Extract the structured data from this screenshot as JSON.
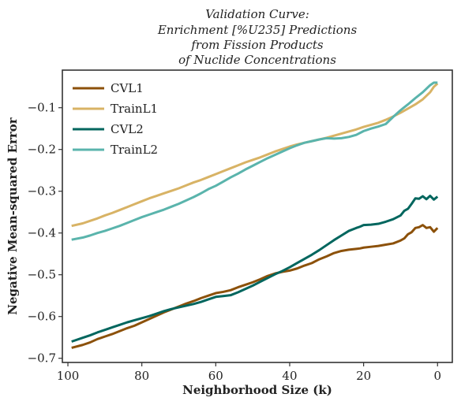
{
  "chart_data": {
    "type": "line",
    "title_lines": [
      "Validation Curve:",
      "Enrichment [%U235] Predictions",
      "from Fission Products",
      "of Nuclide Concentrations"
    ],
    "xlabel": "Neighborhood Size (k)",
    "ylabel": "Negative Mean-squared Error",
    "xlim": [
      101.5,
      -4
    ],
    "ylim": [
      -0.71,
      -0.01
    ],
    "x_ticks": [
      100,
      80,
      60,
      40,
      20,
      0
    ],
    "y_ticks": [
      -0.7,
      -0.6,
      -0.5,
      -0.4,
      -0.3,
      -0.2,
      -0.1
    ],
    "grid": false,
    "legend_position": "top-left",
    "series": [
      {
        "name": "CVL1",
        "color": "#8c510a",
        "points": [
          [
            99,
            -0.675
          ],
          [
            96,
            -0.668
          ],
          [
            94,
            -0.662
          ],
          [
            92,
            -0.654
          ],
          [
            90,
            -0.648
          ],
          [
            88,
            -0.642
          ],
          [
            86,
            -0.635
          ],
          [
            84,
            -0.628
          ],
          [
            82,
            -0.622
          ],
          [
            80,
            -0.614
          ],
          [
            78,
            -0.606
          ],
          [
            76,
            -0.598
          ],
          [
            74,
            -0.59
          ],
          [
            72,
            -0.583
          ],
          [
            70,
            -0.576
          ],
          [
            68,
            -0.569
          ],
          [
            66,
            -0.563
          ],
          [
            64,
            -0.556
          ],
          [
            62,
            -0.55
          ],
          [
            60,
            -0.544
          ],
          [
            58,
            -0.541
          ],
          [
            56,
            -0.537
          ],
          [
            54,
            -0.53
          ],
          [
            52,
            -0.524
          ],
          [
            50,
            -0.518
          ],
          [
            48,
            -0.511
          ],
          [
            46,
            -0.503
          ],
          [
            44,
            -0.497
          ],
          [
            42,
            -0.493
          ],
          [
            40,
            -0.49
          ],
          [
            38,
            -0.485
          ],
          [
            36,
            -0.478
          ],
          [
            34,
            -0.472
          ],
          [
            32,
            -0.463
          ],
          [
            30,
            -0.456
          ],
          [
            28,
            -0.448
          ],
          [
            26,
            -0.443
          ],
          [
            24,
            -0.44
          ],
          [
            22,
            -0.438
          ],
          [
            21,
            -0.437
          ],
          [
            20,
            -0.435
          ],
          [
            18,
            -0.433
          ],
          [
            16,
            -0.431
          ],
          [
            14,
            -0.428
          ],
          [
            12,
            -0.425
          ],
          [
            10,
            -0.418
          ],
          [
            9,
            -0.413
          ],
          [
            8,
            -0.403
          ],
          [
            7,
            -0.398
          ],
          [
            6,
            -0.388
          ],
          [
            5,
            -0.386
          ],
          [
            4,
            -0.381
          ],
          [
            3,
            -0.388
          ],
          [
            2,
            -0.386
          ],
          [
            1,
            -0.397
          ],
          [
            0,
            -0.388
          ]
        ]
      },
      {
        "name": "TrainL1",
        "color": "#d8b365",
        "points": [
          [
            99,
            -0.383
          ],
          [
            96,
            -0.377
          ],
          [
            94,
            -0.371
          ],
          [
            92,
            -0.365
          ],
          [
            90,
            -0.358
          ],
          [
            88,
            -0.352
          ],
          [
            86,
            -0.345
          ],
          [
            84,
            -0.338
          ],
          [
            82,
            -0.331
          ],
          [
            80,
            -0.324
          ],
          [
            78,
            -0.317
          ],
          [
            76,
            -0.311
          ],
          [
            74,
            -0.305
          ],
          [
            72,
            -0.299
          ],
          [
            70,
            -0.293
          ],
          [
            68,
            -0.286
          ],
          [
            66,
            -0.279
          ],
          [
            64,
            -0.273
          ],
          [
            62,
            -0.266
          ],
          [
            60,
            -0.259
          ],
          [
            58,
            -0.252
          ],
          [
            56,
            -0.245
          ],
          [
            54,
            -0.238
          ],
          [
            52,
            -0.231
          ],
          [
            50,
            -0.225
          ],
          [
            48,
            -0.219
          ],
          [
            46,
            -0.212
          ],
          [
            44,
            -0.205
          ],
          [
            42,
            -0.199
          ],
          [
            40,
            -0.193
          ],
          [
            38,
            -0.188
          ],
          [
            36,
            -0.184
          ],
          [
            34,
            -0.18
          ],
          [
            32,
            -0.176
          ],
          [
            30,
            -0.172
          ],
          [
            28,
            -0.167
          ],
          [
            26,
            -0.162
          ],
          [
            24,
            -0.157
          ],
          [
            22,
            -0.152
          ],
          [
            20,
            -0.146
          ],
          [
            18,
            -0.141
          ],
          [
            16,
            -0.136
          ],
          [
            14,
            -0.129
          ],
          [
            12,
            -0.121
          ],
          [
            10,
            -0.112
          ],
          [
            8,
            -0.102
          ],
          [
            6,
            -0.092
          ],
          [
            4,
            -0.08
          ],
          [
            2,
            -0.063
          ],
          [
            1,
            -0.05
          ],
          [
            0,
            -0.042
          ]
        ]
      },
      {
        "name": "CVL2",
        "color": "#01665e",
        "points": [
          [
            99,
            -0.66
          ],
          [
            96,
            -0.651
          ],
          [
            94,
            -0.645
          ],
          [
            92,
            -0.638
          ],
          [
            90,
            -0.632
          ],
          [
            88,
            -0.626
          ],
          [
            86,
            -0.62
          ],
          [
            84,
            -0.614
          ],
          [
            82,
            -0.609
          ],
          [
            80,
            -0.604
          ],
          [
            78,
            -0.599
          ],
          [
            76,
            -0.593
          ],
          [
            74,
            -0.587
          ],
          [
            72,
            -0.582
          ],
          [
            70,
            -0.578
          ],
          [
            68,
            -0.574
          ],
          [
            66,
            -0.57
          ],
          [
            64,
            -0.565
          ],
          [
            62,
            -0.559
          ],
          [
            60,
            -0.553
          ],
          [
            58,
            -0.551
          ],
          [
            56,
            -0.549
          ],
          [
            54,
            -0.542
          ],
          [
            52,
            -0.534
          ],
          [
            50,
            -0.526
          ],
          [
            48,
            -0.517
          ],
          [
            46,
            -0.508
          ],
          [
            44,
            -0.499
          ],
          [
            42,
            -0.491
          ],
          [
            40,
            -0.482
          ],
          [
            38,
            -0.472
          ],
          [
            36,
            -0.462
          ],
          [
            34,
            -0.452
          ],
          [
            32,
            -0.441
          ],
          [
            30,
            -0.429
          ],
          [
            28,
            -0.417
          ],
          [
            26,
            -0.406
          ],
          [
            24,
            -0.395
          ],
          [
            22,
            -0.388
          ],
          [
            21,
            -0.385
          ],
          [
            20,
            -0.381
          ],
          [
            18,
            -0.38
          ],
          [
            16,
            -0.378
          ],
          [
            14,
            -0.373
          ],
          [
            12,
            -0.367
          ],
          [
            10,
            -0.358
          ],
          [
            9,
            -0.347
          ],
          [
            8,
            -0.342
          ],
          [
            7,
            -0.33
          ],
          [
            6,
            -0.317
          ],
          [
            5,
            -0.318
          ],
          [
            4,
            -0.312
          ],
          [
            3,
            -0.319
          ],
          [
            2,
            -0.311
          ],
          [
            1,
            -0.32
          ],
          [
            0,
            -0.313
          ]
        ]
      },
      {
        "name": "TrainL2",
        "color": "#5ab4ac",
        "points": [
          [
            99,
            -0.416
          ],
          [
            96,
            -0.411
          ],
          [
            94,
            -0.406
          ],
          [
            92,
            -0.4
          ],
          [
            90,
            -0.395
          ],
          [
            88,
            -0.389
          ],
          [
            86,
            -0.383
          ],
          [
            84,
            -0.376
          ],
          [
            82,
            -0.369
          ],
          [
            80,
            -0.362
          ],
          [
            78,
            -0.356
          ],
          [
            76,
            -0.35
          ],
          [
            74,
            -0.344
          ],
          [
            72,
            -0.337
          ],
          [
            70,
            -0.33
          ],
          [
            68,
            -0.322
          ],
          [
            66,
            -0.314
          ],
          [
            64,
            -0.305
          ],
          [
            62,
            -0.295
          ],
          [
            60,
            -0.287
          ],
          [
            58,
            -0.277
          ],
          [
            56,
            -0.267
          ],
          [
            54,
            -0.258
          ],
          [
            52,
            -0.248
          ],
          [
            50,
            -0.239
          ],
          [
            48,
            -0.23
          ],
          [
            46,
            -0.221
          ],
          [
            44,
            -0.213
          ],
          [
            42,
            -0.205
          ],
          [
            40,
            -0.197
          ],
          [
            38,
            -0.19
          ],
          [
            36,
            -0.184
          ],
          [
            34,
            -0.18
          ],
          [
            32,
            -0.176
          ],
          [
            30,
            -0.173
          ],
          [
            28,
            -0.174
          ],
          [
            26,
            -0.173
          ],
          [
            24,
            -0.17
          ],
          [
            22,
            -0.165
          ],
          [
            20,
            -0.156
          ],
          [
            18,
            -0.15
          ],
          [
            16,
            -0.145
          ],
          [
            14,
            -0.139
          ],
          [
            12,
            -0.122
          ],
          [
            10,
            -0.106
          ],
          [
            8,
            -0.092
          ],
          [
            6,
            -0.077
          ],
          [
            4,
            -0.063
          ],
          [
            2,
            -0.046
          ],
          [
            1,
            -0.04
          ],
          [
            0,
            -0.04
          ]
        ]
      }
    ]
  }
}
